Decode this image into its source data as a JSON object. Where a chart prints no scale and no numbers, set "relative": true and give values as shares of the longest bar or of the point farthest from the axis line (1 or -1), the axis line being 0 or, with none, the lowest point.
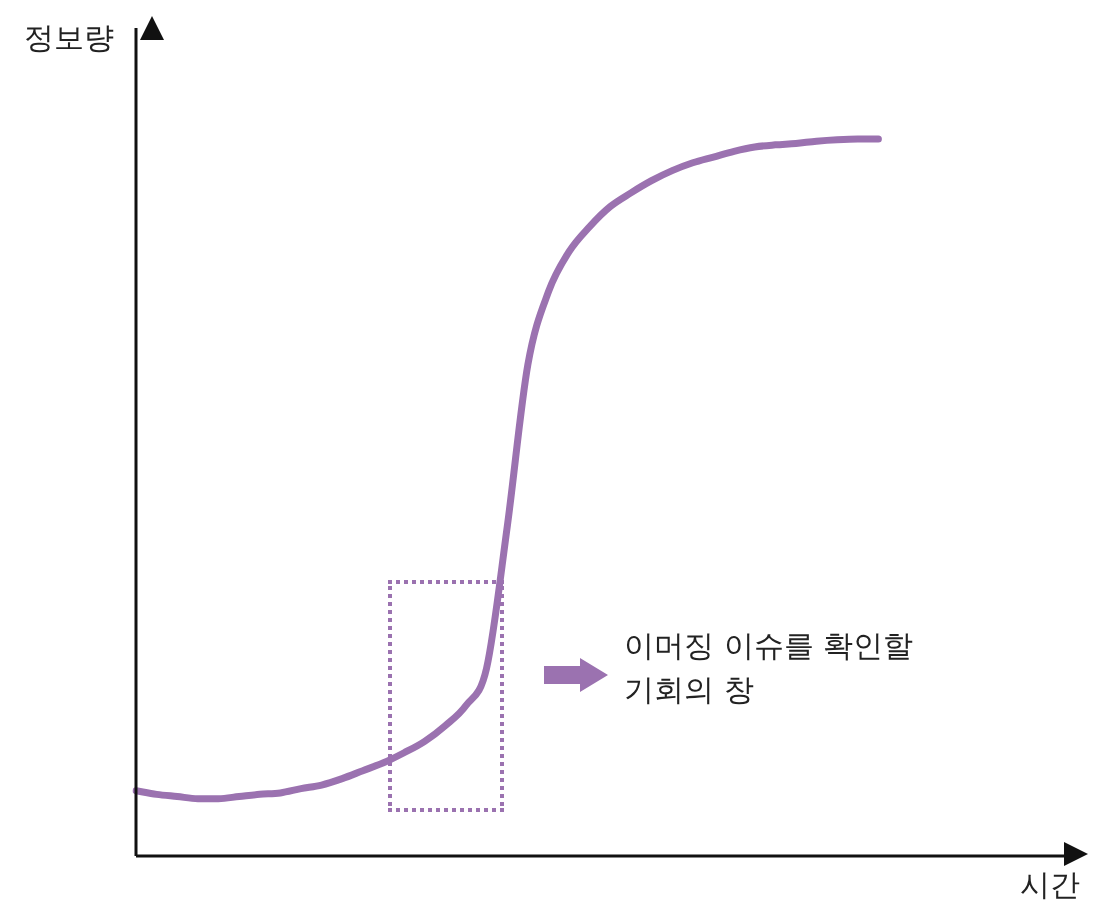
{
  "chart_data": {
    "type": "line",
    "relative": true,
    "xlabel": "시간",
    "ylabel": "정보량",
    "annotations": [
      "이머징 이슈를 확인할\n기회의 창"
    ],
    "categories": [
      null,
      null,
      null,
      null,
      null,
      null,
      null,
      null,
      null,
      null,
      null,
      null,
      null,
      null,
      null,
      null,
      null,
      null,
      null,
      null,
      null,
      null,
      null,
      null,
      null,
      null,
      null,
      null,
      null,
      null,
      null,
      null,
      null,
      null,
      null,
      null,
      null,
      null,
      null,
      null,
      null,
      null,
      null,
      null,
      null,
      null
    ],
    "series": [
      {
        "color": "#9b72b0",
        "values": [
          0.091,
          0.086,
          0.083,
          0.08,
          0.08,
          0.083,
          0.086,
          0.088,
          0.094,
          0.099,
          0.108,
          0.119,
          0.13,
          0.144,
          0.16,
          0.182,
          0.21,
          0.262,
          0.459,
          0.685,
          0.787,
          0.843,
          0.878,
          0.906,
          0.925,
          0.942,
          0.956,
          0.967,
          0.975,
          0.983,
          0.989,
          0.992,
          0.994,
          0.997,
          0.999,
          1,
          1,
          null,
          null,
          null,
          null,
          null,
          null,
          null,
          null,
          null
        ]
      }
    ],
    "grid": false,
    "legend": false,
    "marker": "none",
    "line_style": "solid"
  }
}
